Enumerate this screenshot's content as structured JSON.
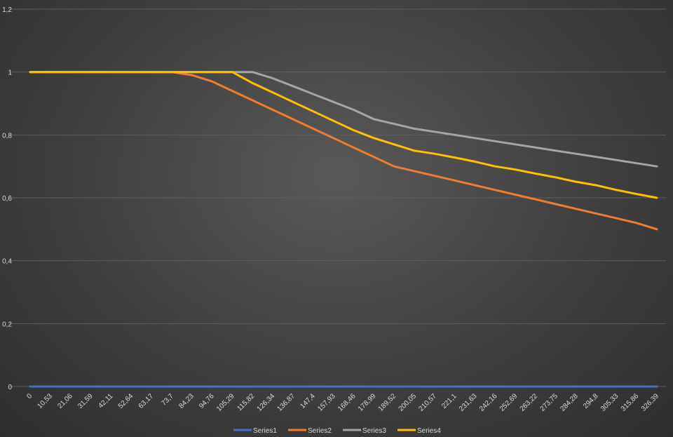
{
  "chart_data": {
    "type": "line",
    "title": "",
    "xlabel": "",
    "ylabel": "",
    "ylim": [
      0,
      1.2
    ],
    "y_ticks": [
      "0",
      "0,2",
      "0,4",
      "0,6",
      "0,8",
      "1",
      "1,2"
    ],
    "x": [
      "0",
      "10,53",
      "21,06",
      "31,59",
      "42,11",
      "52,64",
      "63,17",
      "73,7",
      "84,23",
      "94,76",
      "105,29",
      "115,82",
      "126,34",
      "136,87",
      "147,4",
      "157,93",
      "168,46",
      "178,99",
      "189,52",
      "200,05",
      "210,57",
      "221,1",
      "231,63",
      "242,16",
      "252,69",
      "263,22",
      "273,75",
      "284,28",
      "294,8",
      "305,33",
      "315,86",
      "326,39"
    ],
    "grid": true,
    "legend_position": "bottom",
    "series": [
      {
        "name": "Series1",
        "color": "#4472C4",
        "values": [
          0,
          0,
          0,
          0,
          0,
          0,
          0,
          0,
          0,
          0,
          0,
          0,
          0,
          0,
          0,
          0,
          0,
          0,
          0,
          0,
          0,
          0,
          0,
          0,
          0,
          0,
          0,
          0,
          0,
          0,
          0,
          0
        ]
      },
      {
        "name": "Series2",
        "color": "#ED7D31",
        "values": [
          1,
          1,
          1,
          1,
          1,
          1,
          1,
          1,
          0.99,
          0.97,
          0.94,
          0.91,
          0.88,
          0.85,
          0.82,
          0.79,
          0.76,
          0.73,
          0.7,
          0.685,
          0.67,
          0.655,
          0.64,
          0.625,
          0.61,
          0.595,
          0.58,
          0.565,
          0.55,
          0.535,
          0.52,
          0.5
        ]
      },
      {
        "name": "Series3",
        "color": "#A5A5A5",
        "values": [
          1,
          1,
          1,
          1,
          1,
          1,
          1,
          1,
          1,
          1,
          1,
          1,
          0.98,
          0.955,
          0.93,
          0.905,
          0.88,
          0.85,
          0.835,
          0.82,
          0.81,
          0.8,
          0.79,
          0.78,
          0.77,
          0.76,
          0.75,
          0.74,
          0.73,
          0.72,
          0.71,
          0.7
        ]
      },
      {
        "name": "Series4",
        "color": "#FFC000",
        "values": [
          1,
          1,
          1,
          1,
          1,
          1,
          1,
          1,
          1,
          1,
          1,
          0.965,
          0.935,
          0.905,
          0.875,
          0.845,
          0.815,
          0.79,
          0.77,
          0.75,
          0.74,
          0.728,
          0.715,
          0.7,
          0.69,
          0.677,
          0.665,
          0.651,
          0.64,
          0.625,
          0.612,
          0.6
        ]
      }
    ]
  }
}
